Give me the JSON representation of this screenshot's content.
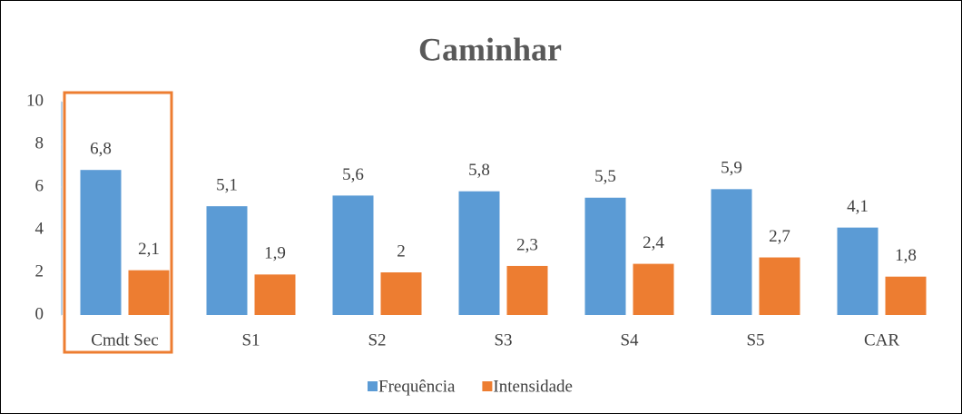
{
  "chart_data": {
    "type": "bar",
    "title": "Caminhar",
    "categories": [
      "Cmdt Sec",
      "S1",
      "S2",
      "S3",
      "S4",
      "S5",
      "CAR"
    ],
    "series": [
      {
        "name": "Frequência",
        "color": "#5b9bd5",
        "values": [
          6.8,
          5.1,
          5.6,
          5.8,
          5.5,
          5.9,
          4.1
        ],
        "value_labels": [
          "6,8",
          "5,1",
          "5,6",
          "5,8",
          "5,5",
          "5,9",
          "4,1"
        ]
      },
      {
        "name": "Intensidade",
        "color": "#ed7d31",
        "values": [
          2.1,
          1.9,
          2,
          2.3,
          2.4,
          2.7,
          1.8
        ],
        "value_labels": [
          "2,1",
          "1,9",
          "2",
          "2,3",
          "2,4",
          "2,7",
          "1,8"
        ]
      }
    ],
    "ylim": [
      0,
      10
    ],
    "yticks": [
      0,
      2,
      4,
      6,
      8,
      10
    ],
    "grid": false,
    "legend": "bottom"
  }
}
